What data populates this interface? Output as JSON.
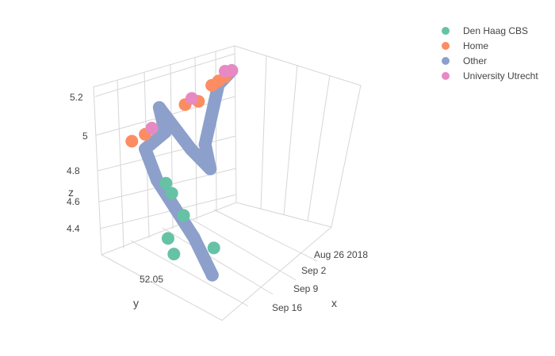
{
  "chart_data": {
    "type": "scatter",
    "title": "",
    "xlabel": "x",
    "ylabel": "y",
    "zlabel": "z",
    "x_ticks": [
      "Aug 26 2018",
      "Sep 2",
      "Sep 9",
      "Sep 16"
    ],
    "y_ticks": [
      "52.05"
    ],
    "z_ticks": [
      "4.4",
      "4.6",
      "4.8",
      "5",
      "5.2"
    ],
    "zlim": [
      4.3,
      5.3
    ],
    "legend_position": "top-right",
    "series": [
      {
        "name": "Den Haag CBS",
        "color": "#66c2a5",
        "points": [
          {
            "date": "2018-09-10",
            "y": 52.03,
            "z": 4.5
          },
          {
            "date": "2018-09-07",
            "y": 52.07,
            "z": 4.55
          },
          {
            "date": "2018-09-05",
            "y": 52.09,
            "z": 4.6
          },
          {
            "date": "2018-09-04",
            "y": 52.1,
            "z": 4.62
          },
          {
            "date": "2018-09-15",
            "y": 52.04,
            "z": 4.6
          },
          {
            "date": "2018-09-16",
            "y": 52.03,
            "z": 4.55
          }
        ]
      },
      {
        "name": "Home",
        "color": "#fc8d62",
        "points": [
          {
            "date": "2018-08-29",
            "y": 52.09,
            "z": 5.12
          },
          {
            "date": "2018-08-28",
            "y": 52.09,
            "z": 5.13
          },
          {
            "date": "2018-08-30",
            "y": 52.09,
            "z": 5.11
          },
          {
            "date": "2018-09-01",
            "y": 52.09,
            "z": 5.05
          },
          {
            "date": "2018-09-03",
            "y": 52.09,
            "z": 5.06
          },
          {
            "date": "2018-09-08",
            "y": 52.09,
            "z": 5.0
          },
          {
            "date": "2018-09-09",
            "y": 52.09,
            "z": 4.98
          },
          {
            "date": "2018-09-11",
            "y": 52.09,
            "z": 4.97
          }
        ]
      },
      {
        "name": "Other",
        "color": "#8da0cb",
        "points": [
          {
            "date": "2018-09-14",
            "y": 52.01,
            "z": 4.45
          },
          {
            "date": "2018-09-13",
            "y": 52.03,
            "z": 4.6
          },
          {
            "date": "2018-09-12",
            "y": 52.05,
            "z": 4.7
          },
          {
            "date": "2018-09-11",
            "y": 52.07,
            "z": 4.8
          },
          {
            "date": "2018-09-09",
            "y": 52.09,
            "z": 4.9
          },
          {
            "date": "2018-09-06",
            "y": 52.09,
            "z": 4.95
          },
          {
            "date": "2018-09-05",
            "y": 52.1,
            "z": 5.05
          },
          {
            "date": "2018-09-04",
            "y": 52.08,
            "z": 4.85
          },
          {
            "date": "2018-09-03",
            "y": 52.07,
            "z": 4.75
          },
          {
            "date": "2018-08-31",
            "y": 52.09,
            "z": 4.8
          },
          {
            "date": "2018-08-29",
            "y": 52.09,
            "z": 5.1
          },
          {
            "date": "2018-08-27",
            "y": 52.09,
            "z": 5.15
          }
        ]
      },
      {
        "name": "University Utrecht",
        "color": "#e78ac3",
        "points": [
          {
            "date": "2018-08-27",
            "y": 52.09,
            "z": 5.15
          },
          {
            "date": "2018-08-28",
            "y": 52.09,
            "z": 5.16
          },
          {
            "date": "2018-09-02",
            "y": 52.09,
            "z": 5.08
          },
          {
            "date": "2018-09-08",
            "y": 52.09,
            "z": 5.0
          }
        ]
      }
    ]
  }
}
